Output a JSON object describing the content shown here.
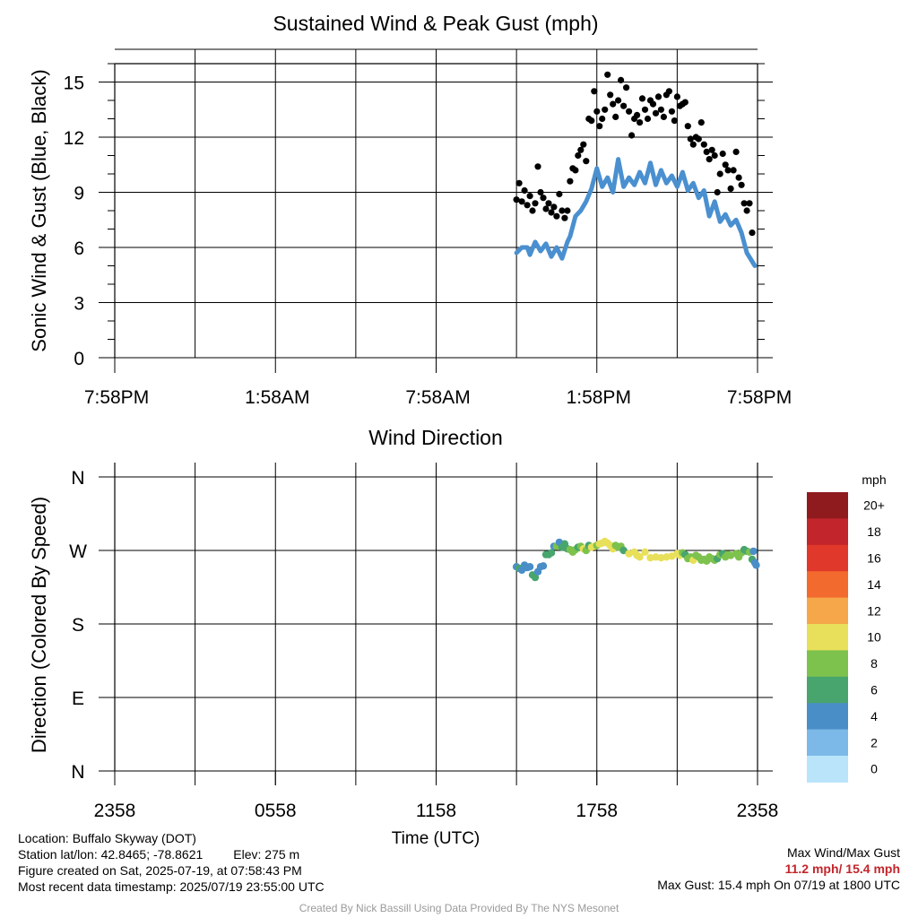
{
  "chart_data": [
    {
      "type": "scatter",
      "title": "Sustained Wind & Peak Gust (mph)",
      "ylabel": "Sonic Wind & Gust (Blue, Black)",
      "xlabel": "",
      "x_tick_labels": [
        "7:58PM",
        "1:58AM",
        "7:58AM",
        "1:58PM",
        "7:58PM"
      ],
      "x_tick_hours": [
        0,
        6,
        12,
        18,
        24
      ],
      "y_ticks": [
        0,
        3,
        6,
        9,
        12,
        15
      ],
      "ylim": [
        0,
        16
      ],
      "xlim_hours": [
        0,
        24
      ],
      "grid": true,
      "series": [
        {
          "color": "#4a90d0",
          "style": "line",
          "points": [
            [
              15.0,
              5.7
            ],
            [
              15.2,
              6.0
            ],
            [
              15.4,
              6.0
            ],
            [
              15.5,
              5.6
            ],
            [
              15.7,
              6.3
            ],
            [
              15.9,
              5.8
            ],
            [
              16.1,
              6.2
            ],
            [
              16.3,
              5.5
            ],
            [
              16.5,
              6.0
            ],
            [
              16.7,
              5.4
            ],
            [
              16.9,
              6.3
            ],
            [
              17.0,
              6.6
            ],
            [
              17.2,
              7.7
            ],
            [
              17.4,
              8.0
            ],
            [
              17.6,
              8.5
            ],
            [
              17.8,
              9.2
            ],
            [
              18.0,
              10.3
            ],
            [
              18.2,
              9.3
            ],
            [
              18.4,
              9.8
            ],
            [
              18.6,
              9.0
            ],
            [
              18.8,
              10.8
            ],
            [
              19.0,
              9.3
            ],
            [
              19.2,
              9.8
            ],
            [
              19.4,
              9.4
            ],
            [
              19.6,
              10.1
            ],
            [
              19.8,
              9.5
            ],
            [
              20.0,
              10.6
            ],
            [
              20.2,
              9.4
            ],
            [
              20.4,
              10.2
            ],
            [
              20.6,
              9.5
            ],
            [
              20.8,
              9.9
            ],
            [
              21.0,
              9.3
            ],
            [
              21.2,
              10.1
            ],
            [
              21.4,
              9.1
            ],
            [
              21.6,
              9.5
            ],
            [
              21.8,
              8.7
            ],
            [
              22.0,
              9.1
            ],
            [
              22.2,
              7.7
            ],
            [
              22.4,
              8.5
            ],
            [
              22.6,
              7.4
            ],
            [
              22.8,
              7.8
            ],
            [
              23.0,
              7.2
            ],
            [
              23.2,
              7.5
            ],
            [
              23.4,
              6.8
            ],
            [
              23.6,
              5.7
            ],
            [
              23.9,
              5.0
            ]
          ]
        },
        {
          "color": "#000000",
          "style": "dots",
          "points": [
            [
              15.0,
              8.6
            ],
            [
              15.1,
              9.5
            ],
            [
              15.2,
              8.5
            ],
            [
              15.3,
              9.1
            ],
            [
              15.4,
              8.3
            ],
            [
              15.5,
              8.8
            ],
            [
              15.6,
              8.0
            ],
            [
              15.7,
              8.4
            ],
            [
              15.8,
              10.4
            ],
            [
              15.9,
              9.0
            ],
            [
              16.0,
              8.7
            ],
            [
              16.1,
              8.1
            ],
            [
              16.2,
              8.4
            ],
            [
              16.3,
              7.9
            ],
            [
              16.4,
              8.2
            ],
            [
              16.5,
              7.7
            ],
            [
              16.6,
              8.9
            ],
            [
              16.7,
              8.0
            ],
            [
              16.8,
              7.6
            ],
            [
              16.9,
              8.0
            ],
            [
              17.0,
              9.6
            ],
            [
              17.1,
              10.3
            ],
            [
              17.2,
              10.2
            ],
            [
              17.3,
              11.0
            ],
            [
              17.4,
              11.3
            ],
            [
              17.5,
              11.6
            ],
            [
              17.6,
              10.7
            ],
            [
              17.7,
              13.0
            ],
            [
              17.8,
              12.9
            ],
            [
              17.9,
              14.5
            ],
            [
              18.0,
              13.4
            ],
            [
              18.1,
              12.6
            ],
            [
              18.2,
              13.0
            ],
            [
              18.3,
              13.5
            ],
            [
              18.4,
              15.4
            ],
            [
              18.5,
              14.3
            ],
            [
              18.6,
              13.8
            ],
            [
              18.7,
              13.1
            ],
            [
              18.8,
              14.0
            ],
            [
              18.9,
              15.1
            ],
            [
              19.0,
              13.7
            ],
            [
              19.1,
              14.7
            ],
            [
              19.2,
              13.4
            ],
            [
              19.3,
              12.1
            ],
            [
              19.4,
              13.0
            ],
            [
              19.5,
              13.2
            ],
            [
              19.6,
              12.8
            ],
            [
              19.7,
              14.1
            ],
            [
              19.8,
              13.5
            ],
            [
              19.9,
              13.0
            ],
            [
              20.0,
              14.0
            ],
            [
              20.1,
              13.8
            ],
            [
              20.2,
              13.3
            ],
            [
              20.3,
              14.2
            ],
            [
              20.4,
              13.5
            ],
            [
              20.5,
              13.1
            ],
            [
              20.6,
              14.3
            ],
            [
              20.7,
              14.5
            ],
            [
              20.8,
              13.4
            ],
            [
              20.9,
              12.9
            ],
            [
              21.0,
              14.2
            ],
            [
              21.1,
              13.7
            ],
            [
              21.2,
              13.8
            ],
            [
              21.3,
              13.9
            ],
            [
              21.4,
              12.6
            ],
            [
              21.5,
              11.9
            ],
            [
              21.6,
              11.6
            ],
            [
              21.7,
              12.0
            ],
            [
              21.8,
              11.9
            ],
            [
              21.9,
              12.8
            ],
            [
              22.0,
              11.6
            ],
            [
              22.1,
              11.2
            ],
            [
              22.2,
              10.8
            ],
            [
              22.3,
              11.3
            ],
            [
              22.4,
              11.0
            ],
            [
              22.5,
              9.0
            ],
            [
              22.6,
              10.0
            ],
            [
              22.7,
              11.1
            ],
            [
              22.8,
              10.5
            ],
            [
              22.9,
              10.2
            ],
            [
              23.0,
              9.2
            ],
            [
              23.1,
              10.2
            ],
            [
              23.2,
              11.2
            ],
            [
              23.3,
              9.8
            ],
            [
              23.4,
              9.4
            ],
            [
              23.5,
              8.4
            ],
            [
              23.6,
              8.0
            ],
            [
              23.7,
              8.4
            ],
            [
              23.8,
              6.8
            ]
          ]
        }
      ]
    },
    {
      "type": "scatter",
      "title": "Wind Direction",
      "ylabel": "Direction (Colored By Speed)",
      "xlabel": "Time (UTC)",
      "x_tick_labels": [
        "2358",
        "0558",
        "1158",
        "1758",
        "2358"
      ],
      "x_tick_hours": [
        0,
        6,
        12,
        18,
        24
      ],
      "y_ticks": [
        0,
        90,
        180,
        270,
        360
      ],
      "y_tick_labels": [
        "N",
        "E",
        "S",
        "W",
        "N"
      ],
      "ylim": [
        0,
        360
      ],
      "xlim_hours": [
        0,
        24
      ],
      "grid": true,
      "points": [
        [
          15.0,
          250,
          4
        ],
        [
          15.1,
          248,
          6
        ],
        [
          15.2,
          246,
          5
        ],
        [
          15.3,
          252,
          4
        ],
        [
          15.4,
          249,
          5
        ],
        [
          15.5,
          250,
          4
        ],
        [
          15.6,
          240,
          6
        ],
        [
          15.7,
          237,
          6
        ],
        [
          15.8,
          244,
          5
        ],
        [
          15.9,
          250,
          4
        ],
        [
          16.0,
          251,
          4
        ],
        [
          16.1,
          265,
          6
        ],
        [
          16.2,
          265,
          6
        ],
        [
          16.3,
          267,
          6
        ],
        [
          16.4,
          275,
          4
        ],
        [
          16.5,
          275,
          8
        ],
        [
          16.6,
          280,
          4
        ],
        [
          16.7,
          274,
          6
        ],
        [
          16.8,
          278,
          6
        ],
        [
          16.9,
          272,
          6
        ],
        [
          17.0,
          271,
          8
        ],
        [
          17.1,
          268,
          8
        ],
        [
          17.2,
          271,
          8
        ],
        [
          17.3,
          274,
          6
        ],
        [
          17.4,
          275,
          8
        ],
        [
          17.5,
          272,
          10
        ],
        [
          17.6,
          270,
          8
        ],
        [
          17.7,
          276,
          6
        ],
        [
          17.8,
          274,
          10
        ],
        [
          17.9,
          275,
          10
        ],
        [
          18.0,
          276,
          8
        ],
        [
          18.1,
          278,
          10
        ],
        [
          18.2,
          279,
          10
        ],
        [
          18.3,
          281,
          10
        ],
        [
          18.4,
          279,
          10
        ],
        [
          18.5,
          276,
          10
        ],
        [
          18.6,
          272,
          10
        ],
        [
          18.7,
          276,
          8
        ],
        [
          18.8,
          274,
          8
        ],
        [
          18.9,
          275,
          8
        ],
        [
          19.0,
          270,
          6
        ],
        [
          19.2,
          266,
          10
        ],
        [
          19.4,
          268,
          10
        ],
        [
          19.5,
          264,
          10
        ],
        [
          19.6,
          262,
          10
        ],
        [
          19.8,
          268,
          10
        ],
        [
          20.0,
          261,
          10
        ],
        [
          20.2,
          262,
          10
        ],
        [
          20.4,
          261,
          10
        ],
        [
          20.6,
          262,
          10
        ],
        [
          20.8,
          263,
          10
        ],
        [
          21.0,
          266,
          10
        ],
        [
          21.1,
          264,
          10
        ],
        [
          21.2,
          267,
          8
        ],
        [
          21.3,
          265,
          6
        ],
        [
          21.4,
          260,
          8
        ],
        [
          21.5,
          262,
          8
        ],
        [
          21.6,
          258,
          10
        ],
        [
          21.7,
          264,
          8
        ],
        [
          21.8,
          262,
          8
        ],
        [
          21.9,
          258,
          8
        ],
        [
          22.0,
          259,
          8
        ],
        [
          22.1,
          257,
          8
        ],
        [
          22.2,
          262,
          8
        ],
        [
          22.3,
          260,
          8
        ],
        [
          22.4,
          258,
          8
        ],
        [
          22.5,
          260,
          6
        ],
        [
          22.6,
          265,
          8
        ],
        [
          22.7,
          266,
          6
        ],
        [
          22.8,
          262,
          8
        ],
        [
          22.9,
          265,
          8
        ],
        [
          23.0,
          264,
          8
        ],
        [
          23.2,
          266,
          8
        ],
        [
          23.3,
          262,
          8
        ],
        [
          23.4,
          267,
          8
        ],
        [
          23.5,
          271,
          6
        ],
        [
          23.6,
          269,
          6
        ],
        [
          23.7,
          268,
          8
        ],
        [
          23.8,
          259,
          6
        ],
        [
          23.85,
          269,
          4
        ],
        [
          23.9,
          255,
          4
        ],
        [
          23.95,
          252,
          4
        ]
      ]
    }
  ],
  "colorbar": {
    "title": "mph",
    "labels": [
      "20+",
      "18",
      "16",
      "14",
      "12",
      "10",
      "8",
      "6",
      "4",
      "2",
      "0"
    ],
    "colors": [
      "#8f1b1e",
      "#c2252b",
      "#e0392b",
      "#f26a2d",
      "#f5a74a",
      "#e8e05a",
      "#7dc24d",
      "#48a56e",
      "#4a8ec8",
      "#7cb9e8",
      "#b9e4f9"
    ]
  },
  "footer": {
    "location": "Location: Buffalo Skyway (DOT)",
    "latlon": "Station lat/lon: 42.8465; -78.8621",
    "elev": "Elev: 275 m",
    "created": "Figure created on Sat, 2025-07-19, at 07:58:43 PM",
    "recent": "Most recent data timestamp: 2025/07/19 23:55:00 UTC",
    "max_label": "Max Wind/Max Gust",
    "max_values": "11.2 mph/ 15.4 mph",
    "max_gust": "Max Gust: 15.4 mph On 07/19 at 1800 UTC",
    "credit": "Created By Nick Bassill Using Data Provided By The NYS Mesonet"
  }
}
